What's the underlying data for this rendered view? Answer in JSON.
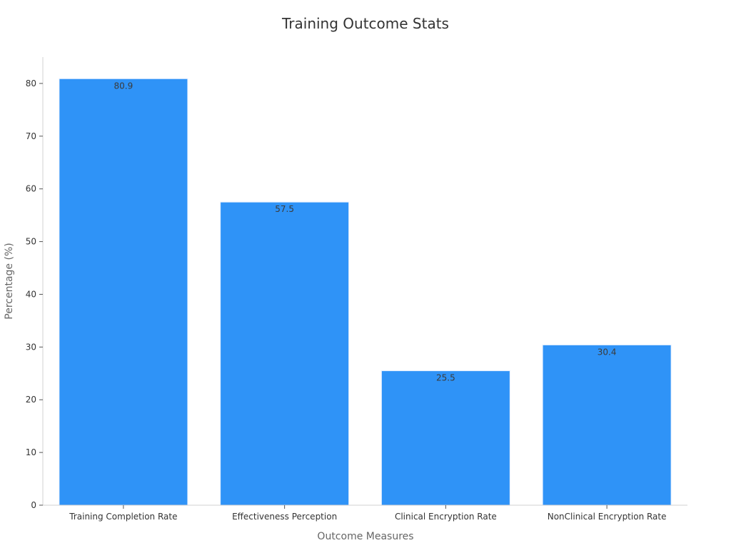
{
  "chart_data": {
    "type": "bar",
    "title": "Training Outcome Stats",
    "xlabel": "Outcome Measures",
    "ylabel": "Percentage (%)",
    "categories": [
      "Training Completion Rate",
      "Effectiveness Perception",
      "Clinical Encryption Rate",
      "NonClinical Encryption Rate"
    ],
    "values": [
      80.9,
      57.5,
      25.5,
      30.4
    ],
    "data_labels": [
      "80.9",
      "57.5",
      "25.5",
      "30.4"
    ],
    "ylim": [
      0,
      85
    ],
    "yticks": [
      0,
      10,
      20,
      30,
      40,
      50,
      60,
      70,
      80
    ],
    "grid": false,
    "colors": {
      "bar": "#2f93f7",
      "bar_edge": "#e6f0ff",
      "axis": "#d0d0d0",
      "tick": "#555555"
    }
  }
}
